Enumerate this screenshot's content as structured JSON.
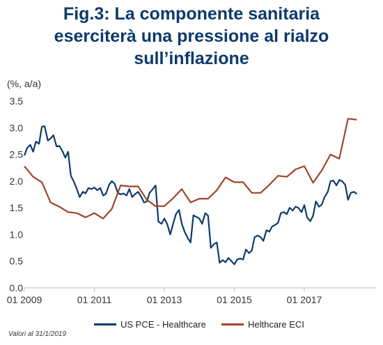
{
  "title_lines": [
    "Fig.3: La componente sanitaria",
    "eserciterà una pressione al rialzo",
    "sull’inflazione"
  ],
  "unit_label": "(%, a/a)",
  "footnote": "Valori al 31/1/2019",
  "colors": {
    "series1": "#0d3a6b",
    "series2": "#a0442a",
    "title": "#0d3a6b"
  },
  "chart_data": {
    "type": "line",
    "title": "Fig.3: La componente sanitaria eserciterà una pressione al rialzo sull’inflazione",
    "ylabel": "(%, a/a)",
    "ylim": [
      0.0,
      3.5
    ],
    "yticks": [
      "0.0",
      "0.5",
      "1.0",
      "1.5",
      "2.0",
      "2.5",
      "3.0",
      "3.5"
    ],
    "xlim": [
      2009.0,
      2019.05
    ],
    "xticks": [
      {
        "x": 2009,
        "label": "01 2009"
      },
      {
        "x": 2011,
        "label": "01 2011"
      },
      {
        "x": 2013,
        "label": "01 2013"
      },
      {
        "x": 2015,
        "label": "01 2015"
      },
      {
        "x": 2017,
        "label": "01 2017"
      }
    ],
    "grid": false,
    "legend_position": "bottom",
    "series": [
      {
        "name": "US PCE - Healthcare",
        "color": "#0d3a6b",
        "points": [
          [
            2009.0,
            2.48
          ],
          [
            2009.08,
            2.62
          ],
          [
            2009.17,
            2.68
          ],
          [
            2009.25,
            2.55
          ],
          [
            2009.33,
            2.74
          ],
          [
            2009.42,
            2.7
          ],
          [
            2009.5,
            3.02
          ],
          [
            2009.58,
            3.03
          ],
          [
            2009.67,
            2.76
          ],
          [
            2009.75,
            2.8
          ],
          [
            2009.83,
            2.86
          ],
          [
            2009.92,
            2.65
          ],
          [
            2010.0,
            2.66
          ],
          [
            2010.08,
            2.57
          ],
          [
            2010.17,
            2.44
          ],
          [
            2010.25,
            2.55
          ],
          [
            2010.33,
            2.1
          ],
          [
            2010.42,
            1.98
          ],
          [
            2010.5,
            1.85
          ],
          [
            2010.58,
            1.7
          ],
          [
            2010.67,
            1.8
          ],
          [
            2010.75,
            1.77
          ],
          [
            2010.83,
            1.87
          ],
          [
            2010.92,
            1.85
          ],
          [
            2011.0,
            1.88
          ],
          [
            2011.08,
            1.83
          ],
          [
            2011.17,
            1.87
          ],
          [
            2011.25,
            1.73
          ],
          [
            2011.33,
            1.76
          ],
          [
            2011.42,
            1.93
          ],
          [
            2011.5,
            2.0
          ],
          [
            2011.58,
            1.95
          ],
          [
            2011.67,
            1.78
          ],
          [
            2011.75,
            1.75
          ],
          [
            2011.83,
            1.77
          ],
          [
            2011.92,
            1.73
          ],
          [
            2012.0,
            1.85
          ],
          [
            2012.08,
            1.7
          ],
          [
            2012.17,
            1.76
          ],
          [
            2012.25,
            1.8
          ],
          [
            2012.33,
            1.72
          ],
          [
            2012.42,
            1.6
          ],
          [
            2012.5,
            1.62
          ],
          [
            2012.58,
            1.78
          ],
          [
            2012.67,
            1.85
          ],
          [
            2012.75,
            1.92
          ],
          [
            2012.83,
            1.24
          ],
          [
            2012.92,
            1.2
          ],
          [
            2013.0,
            1.3
          ],
          [
            2013.08,
            1.2
          ],
          [
            2013.17,
            1.0
          ],
          [
            2013.25,
            1.2
          ],
          [
            2013.33,
            1.38
          ],
          [
            2013.42,
            1.46
          ],
          [
            2013.5,
            1.2
          ],
          [
            2013.58,
            1.05
          ],
          [
            2013.67,
            0.93
          ],
          [
            2013.75,
            0.85
          ],
          [
            2013.83,
            1.36
          ],
          [
            2013.92,
            1.33
          ],
          [
            2014.0,
            1.3
          ],
          [
            2014.08,
            1.2
          ],
          [
            2014.17,
            1.4
          ],
          [
            2014.25,
            1.35
          ],
          [
            2014.33,
            0.75
          ],
          [
            2014.42,
            0.82
          ],
          [
            2014.5,
            0.85
          ],
          [
            2014.58,
            0.47
          ],
          [
            2014.67,
            0.52
          ],
          [
            2014.75,
            0.48
          ],
          [
            2014.83,
            0.56
          ],
          [
            2014.92,
            0.5
          ],
          [
            2015.0,
            0.44
          ],
          [
            2015.08,
            0.53
          ],
          [
            2015.17,
            0.55
          ],
          [
            2015.25,
            0.53
          ],
          [
            2015.33,
            0.72
          ],
          [
            2015.42,
            0.65
          ],
          [
            2015.5,
            0.7
          ],
          [
            2015.58,
            0.95
          ],
          [
            2015.67,
            0.98
          ],
          [
            2015.75,
            0.95
          ],
          [
            2015.83,
            0.88
          ],
          [
            2015.92,
            1.08
          ],
          [
            2016.0,
            1.05
          ],
          [
            2016.08,
            1.15
          ],
          [
            2016.17,
            1.18
          ],
          [
            2016.25,
            1.22
          ],
          [
            2016.33,
            1.4
          ],
          [
            2016.42,
            1.42
          ],
          [
            2016.5,
            1.38
          ],
          [
            2016.58,
            1.5
          ],
          [
            2016.67,
            1.45
          ],
          [
            2016.75,
            1.52
          ],
          [
            2016.83,
            1.5
          ],
          [
            2016.92,
            1.42
          ],
          [
            2017.0,
            1.55
          ],
          [
            2017.08,
            1.32
          ],
          [
            2017.17,
            1.25
          ],
          [
            2017.25,
            1.35
          ],
          [
            2017.33,
            1.62
          ],
          [
            2017.42,
            1.52
          ],
          [
            2017.5,
            1.56
          ],
          [
            2017.58,
            1.7
          ],
          [
            2017.67,
            1.8
          ],
          [
            2017.75,
            2.0
          ],
          [
            2017.83,
            2.01
          ],
          [
            2017.92,
            1.92
          ],
          [
            2018.0,
            2.02
          ],
          [
            2018.08,
            2.0
          ],
          [
            2018.17,
            1.93
          ],
          [
            2018.25,
            1.65
          ],
          [
            2018.33,
            1.78
          ],
          [
            2018.42,
            1.8
          ],
          [
            2018.5,
            1.76
          ]
        ]
      },
      {
        "name": "Helthcare ECI",
        "color": "#a0442a",
        "points": [
          [
            2009.0,
            2.28
          ],
          [
            2009.25,
            2.08
          ],
          [
            2009.5,
            1.98
          ],
          [
            2009.75,
            1.6
          ],
          [
            2010.0,
            1.52
          ],
          [
            2010.25,
            1.42
          ],
          [
            2010.5,
            1.4
          ],
          [
            2010.75,
            1.32
          ],
          [
            2011.0,
            1.4
          ],
          [
            2011.25,
            1.3
          ],
          [
            2011.5,
            1.48
          ],
          [
            2011.75,
            1.92
          ],
          [
            2012.0,
            1.9
          ],
          [
            2012.25,
            1.9
          ],
          [
            2012.5,
            1.65
          ],
          [
            2012.75,
            1.53
          ],
          [
            2013.0,
            1.53
          ],
          [
            2013.25,
            1.68
          ],
          [
            2013.5,
            1.85
          ],
          [
            2013.75,
            1.6
          ],
          [
            2014.0,
            1.67
          ],
          [
            2014.25,
            1.67
          ],
          [
            2014.5,
            1.83
          ],
          [
            2014.75,
            2.07
          ],
          [
            2015.0,
            1.98
          ],
          [
            2015.25,
            1.98
          ],
          [
            2015.5,
            1.78
          ],
          [
            2015.75,
            1.78
          ],
          [
            2016.0,
            1.93
          ],
          [
            2016.25,
            2.1
          ],
          [
            2016.5,
            2.08
          ],
          [
            2016.75,
            2.22
          ],
          [
            2017.0,
            2.28
          ],
          [
            2017.25,
            1.97
          ],
          [
            2017.5,
            2.2
          ],
          [
            2017.75,
            2.5
          ],
          [
            2018.0,
            2.42
          ],
          [
            2018.25,
            3.17
          ],
          [
            2018.5,
            3.15
          ]
        ]
      }
    ]
  }
}
